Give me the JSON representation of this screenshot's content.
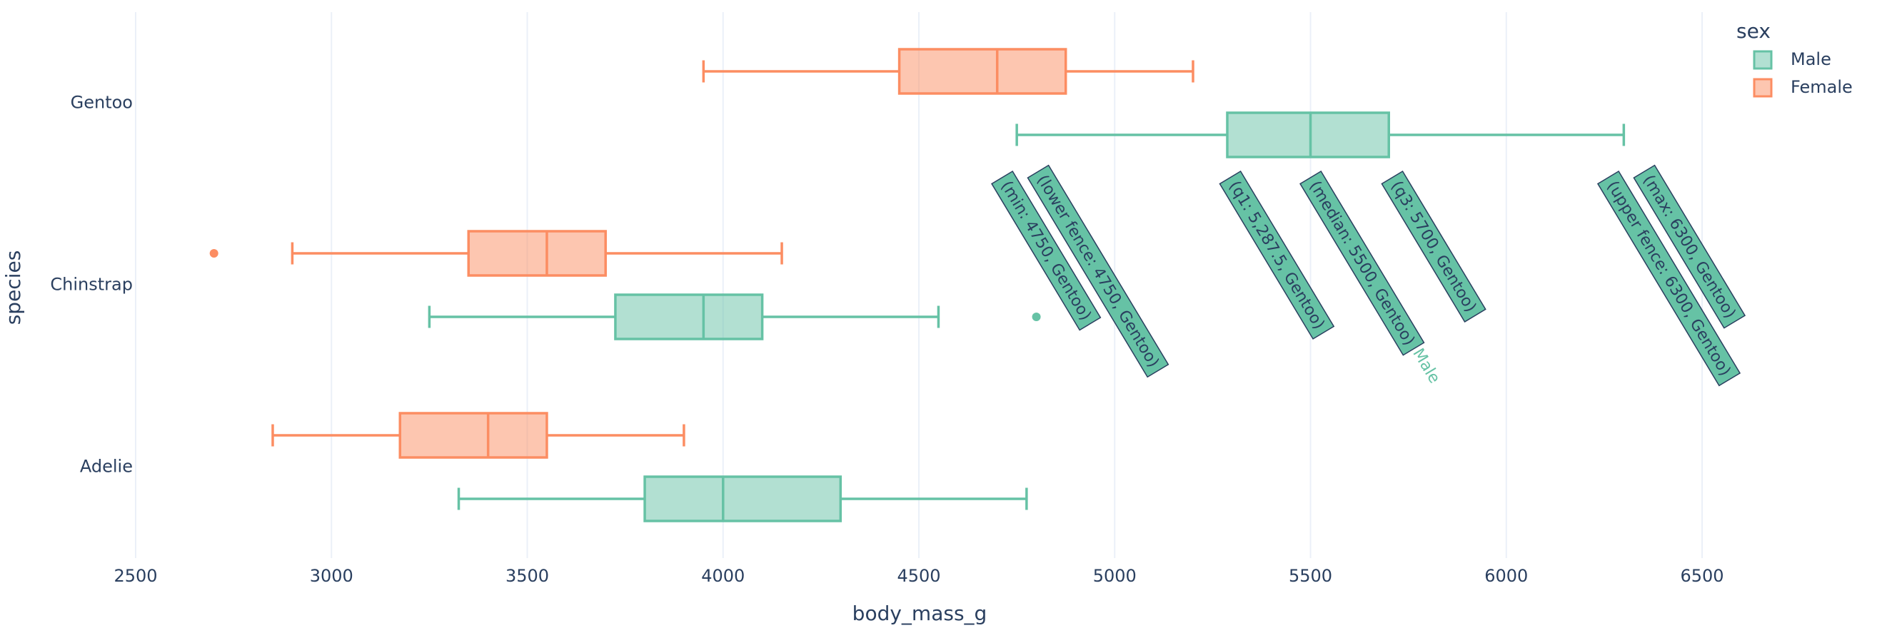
{
  "chart_data": {
    "type": "box",
    "orientation": "h",
    "x_label": "body_mass_g",
    "y_label": "species",
    "legend_title": "sex",
    "legend_position": "top-right",
    "grid": true,
    "categories": [
      "Adelie",
      "Chinstrap",
      "Gentoo"
    ],
    "xlim": [
      2500,
      6870
    ],
    "xticks": [
      2500,
      3000,
      3500,
      4000,
      4500,
      5000,
      5500,
      6000,
      6500
    ],
    "series": [
      {
        "name": "Male",
        "color": "#66c2a5",
        "values": [
          {
            "lower": 3325,
            "q1": 3800,
            "median": 4000,
            "q3": 4300,
            "upper": 4775,
            "outliers": []
          },
          {
            "lower": 3250,
            "q1": 3725,
            "median": 3950,
            "q3": 4100,
            "upper": 4550,
            "outliers": [
              4800
            ]
          },
          {
            "lower": 4750,
            "q1": 5287.5,
            "median": 5500,
            "q3": 5700,
            "upper": 6300,
            "outliers": []
          }
        ]
      },
      {
        "name": "Female",
        "color": "#fc8d62",
        "values": [
          {
            "lower": 2850,
            "q1": 3175,
            "median": 3400,
            "q3": 3550,
            "upper": 3900,
            "outliers": []
          },
          {
            "lower": 2900,
            "q1": 3350,
            "median": 3550,
            "q3": 3700,
            "upper": 4150,
            "outliers": [
              2700
            ]
          },
          {
            "lower": 3950,
            "q1": 4450,
            "median": 4700,
            "q3": 4875,
            "upper": 5200,
            "outliers": []
          }
        ]
      }
    ],
    "hover_labels": [
      "(min: 4750, Gentoo)",
      "(lower fence: 4750, Gentoo)",
      "(q1: 5,287.5, Gentoo)",
      "(median: 5500, Gentoo)",
      "(q3: 5700, Gentoo)",
      "(upper fence: 6300, Gentoo)",
      "(max: 6300, Gentoo)"
    ],
    "hover_series": "Male"
  }
}
